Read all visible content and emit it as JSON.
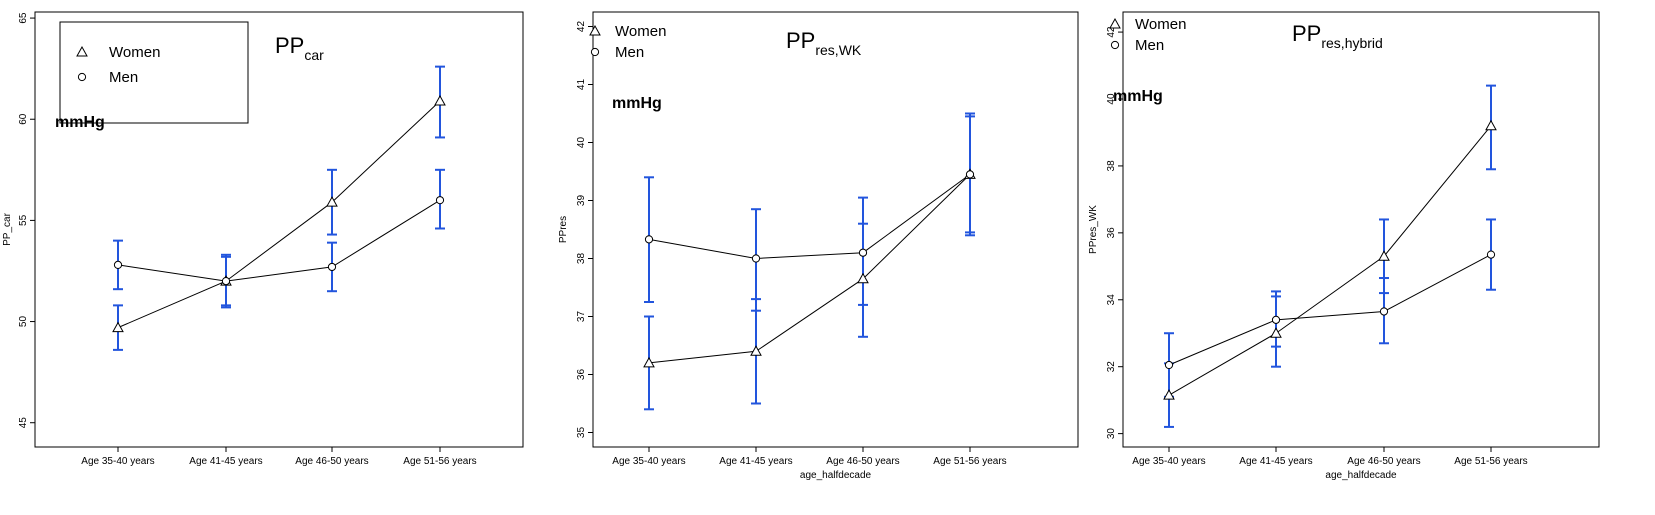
{
  "colors": {
    "errorbar": "#2255dd",
    "line": "#000000",
    "background": "#ffffff"
  },
  "chart_data": [
    {
      "type": "line",
      "title_main": "PP",
      "title_sub": "car",
      "unit_label": "mmHg",
      "xlabel": "",
      "ylabel": "PP_car",
      "categories": [
        "Age 35-40 years",
        "Age 41-45 years",
        "Age 46-50 years",
        "Age 51-56 years"
      ],
      "ylim": [
        43.8,
        65.3
      ],
      "yticks": [
        45,
        50,
        55,
        60,
        65
      ],
      "legend_position": "top-left",
      "legend": [
        "Women",
        "Men"
      ],
      "series": [
        {
          "name": "Women",
          "marker": "triangle",
          "values": [
            49.7,
            52.0,
            55.9,
            60.9
          ],
          "lower": [
            48.6,
            50.8,
            54.3,
            59.1
          ],
          "upper": [
            50.8,
            53.2,
            57.5,
            62.6
          ]
        },
        {
          "name": "Men",
          "marker": "circle",
          "values": [
            52.8,
            52.0,
            52.7,
            56.0
          ],
          "lower": [
            51.6,
            50.7,
            51.5,
            54.6
          ],
          "upper": [
            54.0,
            53.3,
            53.9,
            57.5
          ]
        }
      ]
    },
    {
      "type": "line",
      "title_main": "PP",
      "title_sub": "res,WK",
      "unit_label": "mmHg",
      "xlabel": "age_halfdecade",
      "ylabel": "PPres",
      "categories": [
        "Age 35-40 years",
        "Age 41-45 years",
        "Age 46-50 years",
        "Age 51-56 years"
      ],
      "ylim": [
        34.75,
        42.25
      ],
      "yticks": [
        35,
        36,
        37,
        38,
        39,
        40,
        41,
        42
      ],
      "legend_position": "top-left",
      "legend": [
        "Women",
        "Men"
      ],
      "series": [
        {
          "name": "Women",
          "marker": "triangle",
          "values": [
            36.2,
            36.4,
            37.65,
            39.45
          ],
          "lower": [
            35.4,
            35.5,
            36.65,
            38.4
          ],
          "upper": [
            37.0,
            37.3,
            38.6,
            40.5
          ]
        },
        {
          "name": "Men",
          "marker": "circle",
          "values": [
            38.33,
            38.0,
            38.1,
            39.45
          ],
          "lower": [
            37.25,
            37.1,
            37.2,
            38.45
          ],
          "upper": [
            39.4,
            38.85,
            39.05,
            40.45
          ]
        }
      ]
    },
    {
      "type": "line",
      "title_main": "PP",
      "title_sub": "res,hybrid",
      "unit_label": "mmHg",
      "xlabel": "age_halfdecade",
      "ylabel": "PPres_WK",
      "categories": [
        "Age 35-40 years",
        "Age 41-45 years",
        "Age 46-50 years",
        "Age 51-56 years"
      ],
      "ylim": [
        29.6,
        42.6
      ],
      "yticks": [
        30,
        32,
        34,
        36,
        38,
        40,
        42
      ],
      "legend_position": "top-left",
      "legend": [
        "Women",
        "Men"
      ],
      "series": [
        {
          "name": "Women",
          "marker": "triangle",
          "values": [
            31.15,
            33.0,
            35.3,
            39.2
          ],
          "lower": [
            30.2,
            32.0,
            34.2,
            37.9
          ],
          "upper": [
            32.1,
            34.1,
            36.4,
            40.4
          ]
        },
        {
          "name": "Men",
          "marker": "circle",
          "values": [
            32.05,
            33.4,
            33.65,
            35.35
          ],
          "lower": [
            31.1,
            32.6,
            32.7,
            34.3
          ],
          "upper": [
            33.0,
            34.25,
            34.65,
            36.4
          ]
        }
      ]
    }
  ]
}
